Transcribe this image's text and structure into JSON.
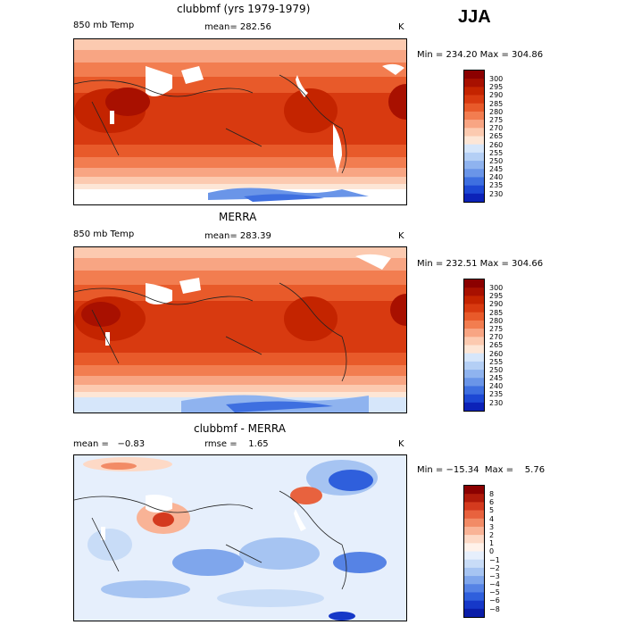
{
  "season": "JJA",
  "panels": [
    {
      "title": "clubbmf (yrs 1979-1979)",
      "variable": "850 mb Temp",
      "stat1": "mean= 282.56",
      "stat2": "",
      "units": "K",
      "range": "Min = 234.20  Max = 304.86",
      "levels": [
        "300",
        "295",
        "290",
        "285",
        "280",
        "275",
        "270",
        "265",
        "260",
        "255",
        "250",
        "245",
        "240",
        "235",
        "230"
      ],
      "colors": [
        "#8b0000",
        "#a81000",
        "#c42400",
        "#d83a10",
        "#e85a2a",
        "#f27d50",
        "#f8a583",
        "#fccab0",
        "#fde6d6",
        "#d6e6fa",
        "#b4cff5",
        "#8fb3ef",
        "#6a95e8",
        "#3e6fe0",
        "#1d48d4",
        "#0c22b8"
      ]
    },
    {
      "title": "MERRA",
      "variable": "850 mb Temp",
      "stat1": "mean= 283.39",
      "stat2": "",
      "units": "K",
      "range": "Min = 232.51  Max = 304.66",
      "levels": [
        "300",
        "295",
        "290",
        "285",
        "280",
        "275",
        "270",
        "265",
        "260",
        "255",
        "250",
        "245",
        "240",
        "235",
        "230"
      ],
      "colors": [
        "#8b0000",
        "#a81000",
        "#c42400",
        "#d83a10",
        "#e85a2a",
        "#f27d50",
        "#f8a583",
        "#fccab0",
        "#fde6d6",
        "#d6e6fa",
        "#b4cff5",
        "#8fb3ef",
        "#6a95e8",
        "#3e6fe0",
        "#1d48d4",
        "#0c22b8"
      ]
    },
    {
      "title": "clubbmf - MERRA",
      "variable": "",
      "stat1": "mean =   −0.83",
      "stat2": "rmse =    1.65",
      "units": "K",
      "range": "Min = −15.34  Max =    5.76",
      "levels": [
        "8",
        "6",
        "5",
        "4",
        "3",
        "2",
        "1",
        "0",
        "−1",
        "−2",
        "−3",
        "−4",
        "−5",
        "−6",
        "−8"
      ],
      "colors": [
        "#8b0000",
        "#b01a0a",
        "#d43a1e",
        "#e8623e",
        "#f28b66",
        "#f9b396",
        "#fdd9c6",
        "#fff2ea",
        "#e6effc",
        "#c8dcf7",
        "#a6c4f2",
        "#7fa6ec",
        "#5683e5",
        "#2f5fdc",
        "#1638c8",
        "#0a1da8"
      ]
    }
  ]
}
